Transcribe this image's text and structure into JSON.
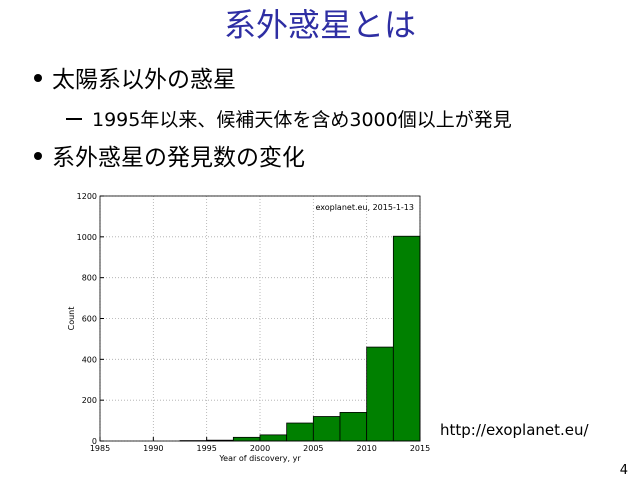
{
  "slide": {
    "title": "系外惑星とは",
    "bullets": [
      {
        "text": "太陽系以外の惑星",
        "sub": [
          "1995年以来、候補天体を含め3000個以上が発見"
        ]
      },
      {
        "text": "系外惑星の発見数の変化",
        "sub": []
      }
    ],
    "source_url": "http://exoplanet.eu/",
    "page_number": "4"
  },
  "chart_data": {
    "type": "histogram",
    "annotation": "exoplanet.eu, 2015-1-13",
    "x_label": "Year of discovery, yr",
    "y_label": "Count",
    "bins": [
      1985,
      1987.5,
      1990,
      1992.5,
      1995,
      1997.5,
      2000,
      2002.5,
      2005,
      2007.5,
      2010,
      2012.5,
      2015
    ],
    "values": [
      0,
      0,
      0,
      2,
      4,
      18,
      30,
      88,
      120,
      140,
      460,
      1003
    ],
    "color": "#008000",
    "xlim": [
      1985,
      2015
    ],
    "xticks": [
      1985,
      1990,
      1995,
      2000,
      2005,
      2010,
      2015
    ],
    "ylim": [
      0,
      1200
    ],
    "yticks": [
      0,
      200,
      400,
      600,
      800,
      1000,
      1200
    ],
    "grid": true
  }
}
